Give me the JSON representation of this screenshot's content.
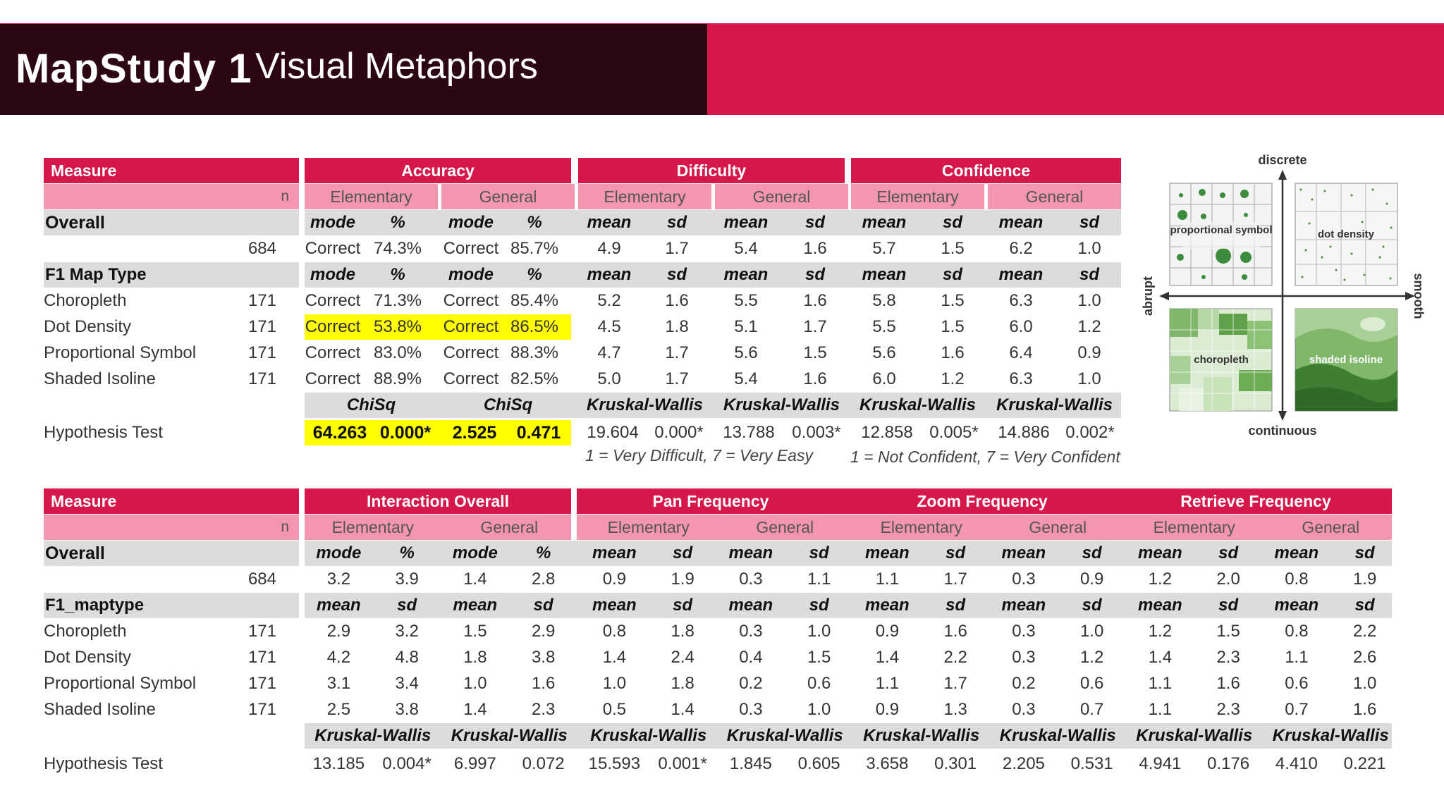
{
  "title": {
    "bold": "MapStudy 1",
    "light": "Visual Metaphors"
  },
  "table1": {
    "groups": [
      "Measure",
      "Accuracy",
      "Difficulty",
      "Confidence"
    ],
    "n_label": "n",
    "sub": [
      "Elementary",
      "General",
      "Elementary",
      "General",
      "Elementary",
      "General"
    ],
    "overall": {
      "label": "Overall",
      "cols": [
        "mode",
        "%",
        "mode",
        "%",
        "mean",
        "sd",
        "mean",
        "sd",
        "mean",
        "sd",
        "mean",
        "sd"
      ],
      "row": {
        "n": "684",
        "v": [
          "Correct",
          "74.3%",
          "Correct",
          "85.7%",
          "4.9",
          "1.7",
          "5.4",
          "1.6",
          "5.7",
          "1.5",
          "6.2",
          "1.0"
        ]
      }
    },
    "f1": {
      "label": "F1 Map Type",
      "cols": [
        "mode",
        "%",
        "mode",
        "%",
        "mean",
        "sd",
        "mean",
        "sd",
        "mean",
        "sd",
        "mean",
        "sd"
      ],
      "rows": [
        {
          "name": "Choropleth",
          "n": "171",
          "v": [
            "Correct",
            "71.3%",
            "Correct",
            "85.4%",
            "5.2",
            "1.6",
            "5.5",
            "1.6",
            "5.8",
            "1.5",
            "6.3",
            "1.0"
          ]
        },
        {
          "name": "Dot Density",
          "n": "171",
          "v": [
            "Correct",
            "53.8%",
            "Correct",
            "86.5%",
            "4.5",
            "1.8",
            "5.1",
            "1.7",
            "5.5",
            "1.5",
            "6.0",
            "1.2"
          ]
        },
        {
          "name": "Proportional Symbol",
          "n": "171",
          "v": [
            "Correct",
            "83.0%",
            "Correct",
            "88.3%",
            "4.7",
            "1.7",
            "5.6",
            "1.5",
            "5.6",
            "1.6",
            "6.4",
            "0.9"
          ]
        },
        {
          "name": "Shaded Isoline",
          "n": "171",
          "v": [
            "Correct",
            "88.9%",
            "Correct",
            "82.5%",
            "5.0",
            "1.7",
            "5.4",
            "1.6",
            "6.0",
            "1.2",
            "6.3",
            "1.0"
          ]
        }
      ]
    },
    "tests": [
      "ChiSq",
      "ChiSq",
      "Kruskal-Wallis",
      "Kruskal-Wallis",
      "Kruskal-Wallis",
      "Kruskal-Wallis"
    ],
    "hyp": {
      "label": "Hypothesis Test",
      "v": [
        "64.263",
        "0.000*",
        "2.525",
        "0.471",
        "19.604",
        "0.000*",
        "13.788",
        "0.003*",
        "12.858",
        "0.005*",
        "14.886",
        "0.002*"
      ]
    },
    "notes": [
      "1 = Very Difficult, 7 = Very Easy",
      "1 = Not Confident, 7 = Very Confident"
    ],
    "highlight_color": "#ffff00"
  },
  "table2": {
    "groups": [
      "Measure",
      "Interaction Overall",
      "Pan Frequency",
      "Zoom Frequency",
      "Retrieve Frequency"
    ],
    "n_label": "n",
    "sub": [
      "Elementary",
      "General",
      "Elementary",
      "General",
      "Elementary",
      "General",
      "Elementary",
      "General"
    ],
    "overall": {
      "label": "Overall",
      "cols": [
        "mode",
        "%",
        "mode",
        "%",
        "mean",
        "sd",
        "mean",
        "sd",
        "mean",
        "sd",
        "mean",
        "sd",
        "mean",
        "sd",
        "mean",
        "sd"
      ],
      "row": {
        "n": "684",
        "v": [
          "3.2",
          "3.9",
          "1.4",
          "2.8",
          "0.9",
          "1.9",
          "0.3",
          "1.1",
          "1.1",
          "1.7",
          "0.3",
          "0.9",
          "1.2",
          "2.0",
          "0.8",
          "1.9"
        ]
      }
    },
    "f1": {
      "label": "F1_maptype",
      "cols": [
        "mean",
        "sd",
        "mean",
        "sd",
        "mean",
        "sd",
        "mean",
        "sd",
        "mean",
        "sd",
        "mean",
        "sd",
        "mean",
        "sd",
        "mean",
        "sd"
      ],
      "rows": [
        {
          "name": "Choropleth",
          "n": "171",
          "v": [
            "2.9",
            "3.2",
            "1.5",
            "2.9",
            "0.8",
            "1.8",
            "0.3",
            "1.0",
            "0.9",
            "1.6",
            "0.3",
            "1.0",
            "1.2",
            "1.5",
            "0.8",
            "2.2"
          ]
        },
        {
          "name": "Dot Density",
          "n": "171",
          "v": [
            "4.2",
            "4.8",
            "1.8",
            "3.8",
            "1.4",
            "2.4",
            "0.4",
            "1.5",
            "1.4",
            "2.2",
            "0.3",
            "1.2",
            "1.4",
            "2.3",
            "1.1",
            "2.6"
          ]
        },
        {
          "name": "Proportional Symbol",
          "n": "171",
          "v": [
            "3.1",
            "3.4",
            "1.0",
            "1.6",
            "1.0",
            "1.8",
            "0.2",
            "0.6",
            "1.1",
            "1.7",
            "0.2",
            "0.6",
            "1.1",
            "1.6",
            "0.6",
            "1.0"
          ]
        },
        {
          "name": "Shaded Isoline",
          "n": "171",
          "v": [
            "2.5",
            "3.8",
            "1.4",
            "2.3",
            "0.5",
            "1.4",
            "0.3",
            "1.0",
            "0.9",
            "1.3",
            "0.3",
            "0.7",
            "1.1",
            "2.3",
            "0.7",
            "1.6"
          ]
        }
      ]
    },
    "tests": [
      "Kruskal-Wallis",
      "Kruskal-Wallis",
      "Kruskal-Wallis",
      "Kruskal-Wallis",
      "Kruskal-Wallis",
      "Kruskal-Wallis",
      "Kruskal-Wallis",
      "Kruskal-Wallis"
    ],
    "hyp": {
      "label": "Hypothesis Test",
      "v": [
        "13.185",
        "0.004*",
        "6.997",
        "0.072",
        "15.593",
        "0.001*",
        "1.845",
        "0.605",
        "3.658",
        "0.301",
        "2.205",
        "0.531",
        "4.941",
        "0.176",
        "4.410",
        "0.221"
      ]
    }
  },
  "figure": {
    "axes": {
      "top": "discrete",
      "bottom": "continuous",
      "left": "abrupt",
      "right": "smooth"
    },
    "maps": [
      "proportional symbol",
      "dot density",
      "choropleth",
      "shaded isoline"
    ]
  },
  "colors": {
    "brand": "#d6174a",
    "title_bg": "#2c0611",
    "sub_header": "#f596b0",
    "row_gray": "#dcdcdc"
  }
}
